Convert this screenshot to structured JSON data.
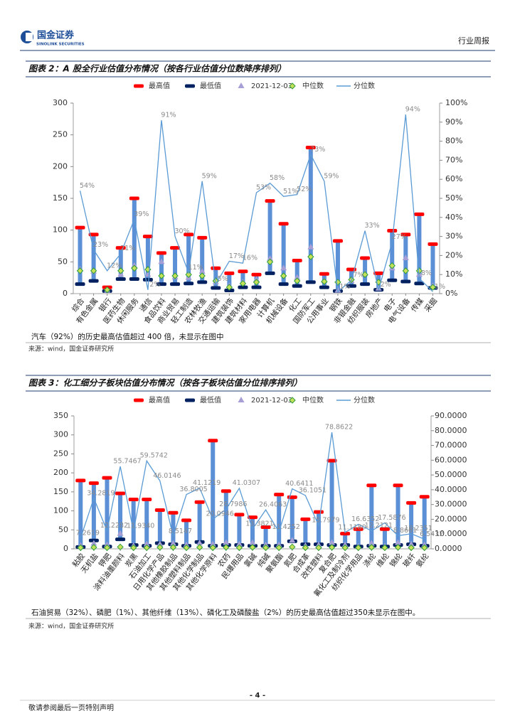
{
  "header": {
    "logo_cn": "国金证券",
    "logo_en": "SINOLINK SECURITIES",
    "section": "行业周报"
  },
  "chart_data": [
    {
      "type": "range",
      "title": "图表 2：A 股全行业估值分布情况（按各行业估值分位数降序排列）",
      "categories": [
        "综合",
        "有色金属",
        "银行",
        "医药生物",
        "休闲服务",
        "通信",
        "食品饮料",
        "商业贸易",
        "轻工制造",
        "农林牧渔",
        "交通运输",
        "建筑装饰",
        "建筑材料",
        "家用电器",
        "计算机",
        "机械设备",
        "化工",
        "国防军工",
        "公用事业",
        "钢铁",
        "非银金融",
        "纺织服装",
        "房地产",
        "电子",
        "电气设备",
        "传媒",
        "采掘"
      ],
      "bar_color": "#5b8fd6",
      "series": [
        {
          "name": "最高值",
          "color": "#ff0000",
          "marker": "dash",
          "values": [
            104,
            93,
            10,
            72,
            150,
            90,
            64,
            72,
            93,
            88,
            40,
            32,
            35,
            30,
            146,
            110,
            52,
            230,
            31,
            83,
            38,
            56,
            32,
            99,
            93,
            125,
            78
          ]
        },
        {
          "name": "最低值",
          "color": "#002060",
          "marker": "dash",
          "values": [
            15,
            20,
            4,
            23,
            23,
            22,
            15,
            15,
            16,
            18,
            9,
            5,
            10,
            10,
            32,
            15,
            12,
            18,
            10,
            4,
            12,
            15,
            6,
            21,
            19,
            16,
            9
          ]
        },
        {
          "name": "2021-12-03",
          "color": "#a59fd6",
          "marker": "triangle",
          "values": [
            38,
            35,
            5,
            30,
            44,
            30,
            50,
            26,
            25,
            35,
            18,
            12,
            18,
            22,
            55,
            40,
            25,
            73,
            20,
            5,
            20,
            31,
            8,
            40,
            56,
            30,
            12
          ]
        },
        {
          "name": "中位数",
          "color": "#c6e05a",
          "marker": "diamond",
          "values": [
            36,
            36,
            6,
            36,
            40,
            38,
            28,
            28,
            30,
            28,
            20,
            10,
            16,
            18,
            50,
            28,
            20,
            58,
            19,
            18,
            22,
            30,
            18,
            44,
            36,
            36,
            10
          ]
        },
        {
          "name": "分位数",
          "color": "#5b9bd5",
          "marker": "line",
          "axis": "y2",
          "values": [
            54,
            23,
            12,
            21,
            39,
            2,
            91,
            30,
            11,
            59,
            5,
            17,
            16,
            53,
            58,
            51,
            52,
            73,
            59,
            1,
            7,
            33,
            2,
            27,
            94,
            8,
            1
          ],
          "value_labels": [
            "54%",
            "23%",
            "12%",
            "21%",
            "39%",
            "2%",
            "91%",
            "30%",
            "11%",
            "59%",
            "5%",
            "17%",
            "16%",
            "53%",
            "58%",
            "51%",
            "52%",
            "73%",
            "59%",
            "1%",
            "7%",
            "33%",
            "2%",
            "27%",
            "94%",
            "8%",
            "1%"
          ]
        }
      ],
      "ylim": [
        0,
        300
      ],
      "yticks": [
        0,
        50,
        100,
        150,
        200,
        250,
        300
      ],
      "y2lim": [
        0,
        100
      ],
      "y2ticks": [
        {
          "value": 0,
          "label": "0%"
        },
        {
          "value": 10,
          "label": "10%"
        },
        {
          "value": 20,
          "label": "20%"
        },
        {
          "value": 30,
          "label": "30%"
        },
        {
          "value": 40,
          "label": "40%"
        },
        {
          "value": 50,
          "label": "50%"
        },
        {
          "value": 60,
          "label": "60%"
        },
        {
          "value": 70,
          "label": "70%"
        },
        {
          "value": 80,
          "label": "80%"
        },
        {
          "value": 90,
          "label": "90%"
        },
        {
          "value": 100,
          "label": "100%"
        }
      ],
      "note": "汽车（92%）的历史最高估值超过 400 倍，未显示在图中",
      "source": "来源：wind，国金证券研究所"
    },
    {
      "type": "range",
      "title": "图表 3：化工细分子板块估值分布情况（按各子板块估值分位排序排列）",
      "categories": [
        "粘胶",
        "无机盐",
        "钾肥",
        "涂料油墨颜料",
        "炭黑",
        "石油加工",
        "日用化学产品",
        "其他橡胶制品",
        "其他塑料制品",
        "其他化学制品",
        "其他化学原料",
        "农药",
        "民爆用品",
        "氯碱",
        "纯碱",
        "聚氨酯",
        "氮肥",
        "合成革",
        "改性塑料",
        "复合肥",
        "氟化工及制冷剂",
        "纺织化学用品",
        "涤纶",
        "维纶",
        "锦纶",
        "玻纤",
        "氨纶"
      ],
      "bar_color": "#5b8fd6",
      "series": [
        {
          "name": "最高值",
          "color": "#ff0000",
          "marker": "dash",
          "values": [
            180,
            173,
            187,
            146,
            130,
            130,
            102,
            95,
            75,
            123,
            285,
            152,
            90,
            83,
            57,
            143,
            136,
            78,
            97,
            232,
            40,
            52,
            167,
            52,
            167,
            121,
            137
          ]
        },
        {
          "name": "最低值",
          "color": "#002060",
          "marker": "dash",
          "values": [
            5,
            22,
            6,
            25,
            10,
            8,
            15,
            12,
            8,
            18,
            8,
            10,
            10,
            8,
            8,
            8,
            20,
            12,
            12,
            10,
            10,
            6,
            8,
            6,
            10,
            12,
            8
          ]
        },
        {
          "name": "2021-12-03",
          "color": "#a59fd6",
          "marker": "triangle",
          "values": [
            8,
            14,
            10,
            40,
            8,
            12,
            12,
            14,
            10,
            15,
            12,
            16,
            12,
            16,
            10,
            10,
            22,
            8,
            10,
            16,
            10,
            6,
            14,
            6,
            16,
            12,
            10
          ]
        },
        {
          "name": "中位数",
          "color": "#c6e05a",
          "marker": "diamond",
          "values": [
            3,
            4,
            3,
            5,
            3,
            3,
            4,
            4,
            3,
            4,
            3,
            4,
            3,
            4,
            3,
            3,
            5,
            3,
            3,
            4,
            3,
            3,
            4,
            3,
            4,
            3,
            3
          ]
        },
        {
          "name": "分位数",
          "color": "#5b9bd5",
          "marker": "line",
          "axis": "y2",
          "values": [
            7.2619,
            34.2819,
            12.2282,
            55.7467,
            11.934,
            59.5742,
            46.0146,
            8.5147,
            36.8005,
            41.1219,
            20.0946,
            26.7986,
            41.0307,
            13.3821,
            26.4063,
            11.4252,
            40.6411,
            36.1051,
            15.7979,
            78.8622,
            11.118,
            16.6352,
            12.2121,
            17.5876,
            8.8661,
            10.2351,
            6.5432
          ],
          "value_labels": [
            "7.2619",
            "34.2819",
            "12.2282",
            "55.7467",
            "11.9340",
            "59.5742",
            "46.0146",
            "8.5147",
            "36.8005",
            "41.1219",
            "20.0946",
            "26.7986",
            "41.0307",
            "13.3821",
            "26.4063",
            "11.4252",
            "40.6411",
            "36.1051",
            "15.7979",
            "78.8622",
            "11.1180",
            "16.6352",
            "12.2121",
            "17.5876",
            "8.8661",
            "10.2351",
            "6.5432"
          ]
        }
      ],
      "ylim": [
        0,
        350
      ],
      "yticks": [
        0,
        50,
        100,
        150,
        200,
        250,
        300,
        350
      ],
      "y2lim": [
        0,
        90
      ],
      "y2ticks": [
        {
          "value": 0,
          "label": "0.0000"
        },
        {
          "value": 10,
          "label": "10.0000"
        },
        {
          "value": 20,
          "label": "20.0000"
        },
        {
          "value": 30,
          "label": "30.0000"
        },
        {
          "value": 40,
          "label": "40.0000"
        },
        {
          "value": 50,
          "label": "50.0000"
        },
        {
          "value": 60,
          "label": "60.0000"
        },
        {
          "value": 70,
          "label": "70.0000"
        },
        {
          "value": 80,
          "label": "80.0000"
        },
        {
          "value": 90,
          "label": "90.0000"
        }
      ],
      "note": "石油贸易（32%）、磷肥（1%）、其他纤维（13%）、磷化工及磷酸盐（2%）的历史最高估值超过350未显示在图中。",
      "source": "来源：wind，国金证券研究所"
    }
  ],
  "footer": {
    "page": "- 4 -",
    "disclaimer": "敬请参阅最后一页特别声明"
  }
}
